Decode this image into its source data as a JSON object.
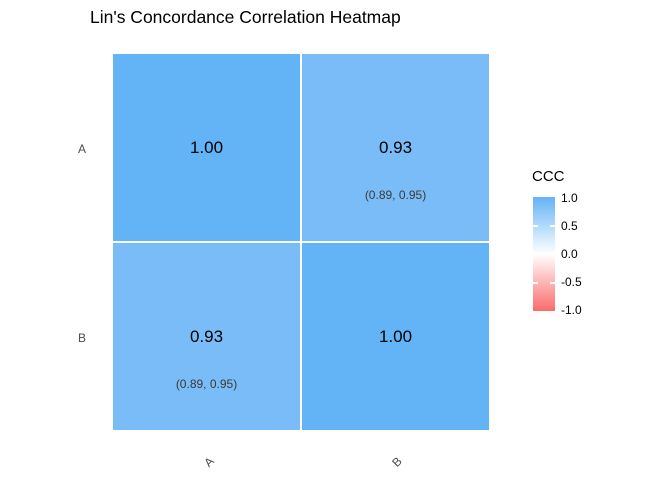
{
  "title": "Lin's Concordance Correlation Heatmap",
  "heatmap": {
    "rows": [
      "A",
      "B"
    ],
    "cols": [
      "A",
      "B"
    ],
    "cells": [
      {
        "row": "A",
        "col": "A",
        "value": "1.00",
        "ci": "",
        "color": "#63B3F7",
        "css": "background:#63B3F7"
      },
      {
        "row": "A",
        "col": "B",
        "value": "0.93",
        "ci": "(0.89, 0.95)",
        "color": "#7ABCF8",
        "css": "background:#7ABCF8"
      },
      {
        "row": "B",
        "col": "A",
        "value": "0.93",
        "ci": "(0.89, 0.95)",
        "color": "#7ABCF8",
        "css": "background:#7ABCF8"
      },
      {
        "row": "B",
        "col": "B",
        "value": "1.00",
        "ci": "",
        "color": "#63B3F7",
        "css": "background:#63B3F7"
      }
    ]
  },
  "legend": {
    "title": "CCC",
    "ticks": [
      "1.0",
      "0.5",
      "0.0",
      "-0.5",
      "-1.0"
    ],
    "gradient": {
      "top": "#63B3F7",
      "mid": "#FFFFFF",
      "bottom": "#F96B6B"
    },
    "gradient_css": "background:linear-gradient(to bottom,#63B3F7 0%,#FFFFFF 50%,#F96B6B 100%)"
  },
  "colors": {
    "value_1_00": "#63B3F7",
    "value_0_93": "#7ABCF8",
    "axis_text": "#4D4D4D",
    "title_text": "#000000",
    "ci_text": "#3A3A3A",
    "background": "#FFFFFF"
  },
  "chart_data": {
    "type": "heatmap",
    "title": "Lin's Concordance Correlation Heatmap",
    "x_categories": [
      "A",
      "B"
    ],
    "y_categories": [
      "A",
      "B"
    ],
    "values": [
      [
        1.0,
        0.93
      ],
      [
        0.93,
        1.0
      ]
    ],
    "confidence_intervals": [
      [
        null,
        [
          0.89,
          0.95
        ]
      ],
      [
        [
          0.89,
          0.95
        ],
        null
      ]
    ],
    "legend": {
      "title": "CCC",
      "range": [
        -1.0,
        1.0
      ],
      "ticks": [
        1.0,
        0.5,
        0.0,
        -0.5,
        -1.0
      ],
      "position": "right",
      "colors": {
        "high": "#63B3F7",
        "mid": "#FFFFFF",
        "low": "#F96B6B"
      }
    },
    "grid": false,
    "cell_label_color": "#000000",
    "axis_label_angle_x": 45
  }
}
